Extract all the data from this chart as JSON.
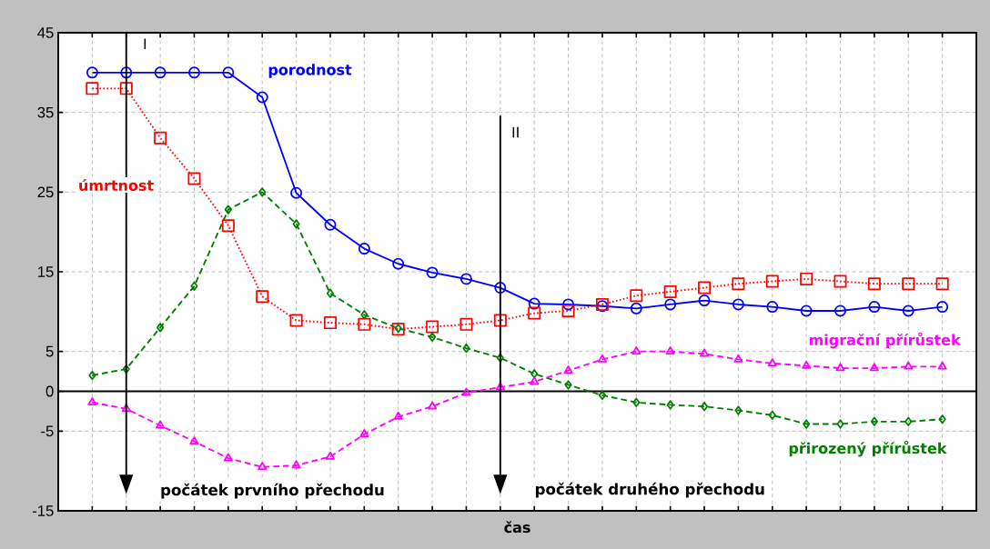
{
  "chart_data": {
    "type": "line",
    "xlabel": "čas",
    "categories": [
      null,
      null,
      null,
      null,
      null,
      null,
      null,
      null,
      null,
      null,
      null,
      null,
      null,
      null,
      null,
      null,
      null,
      null,
      null,
      null,
      null,
      null,
      null,
      null,
      null,
      null
    ],
    "ylim": [
      -15,
      45
    ],
    "yticks": [
      -15,
      -5,
      0,
      5,
      15,
      25,
      35,
      45
    ],
    "grid": true,
    "series": [
      {
        "name": "porodnost",
        "color": "#0000ff",
        "marker": "circle",
        "line_style": "solid",
        "values": [
          40,
          40,
          40,
          40,
          40,
          36.9,
          24.9,
          20.9,
          17.9,
          16.0,
          14.9,
          14.1,
          13.0,
          11.0,
          10.9,
          10.7,
          10.4,
          10.9,
          11.4,
          10.9,
          10.6,
          10.1,
          10.1,
          10.6,
          10.1,
          10.6
        ]
      },
      {
        "name": "úmrtnost",
        "color": "#ff0000",
        "marker": "square",
        "line_style": "dotted",
        "values": [
          38,
          38,
          31.8,
          26.7,
          20.8,
          11.9,
          8.9,
          8.6,
          8.4,
          7.8,
          8.1,
          8.4,
          8.9,
          9.8,
          10.1,
          10.9,
          12.0,
          12.5,
          13.0,
          13.5,
          13.8,
          14.1,
          13.8,
          13.5,
          13.5,
          13.5
        ]
      },
      {
        "name": "přirozený přírůstek",
        "color": "#008000",
        "marker": "diamond",
        "line_style": "dashed",
        "values": [
          2.0,
          2.8,
          8.0,
          13.2,
          22.8,
          25.0,
          21.0,
          12.3,
          9.6,
          7.9,
          6.8,
          5.4,
          4.2,
          2.2,
          0.8,
          -0.5,
          -1.4,
          -1.7,
          -1.9,
          -2.4,
          -3.0,
          -4.1,
          -4.1,
          -3.8,
          -3.8,
          -3.5
        ]
      },
      {
        "name": "migrační přírůstek",
        "color": "#ff00ff",
        "marker": "triangle",
        "line_style": "dashed",
        "values": [
          -1.4,
          -2.2,
          -4.3,
          -6.3,
          -8.4,
          -9.5,
          -9.3,
          -8.2,
          -5.4,
          -3.2,
          -1.9,
          -0.2,
          0.5,
          1.2,
          2.6,
          4.0,
          5.0,
          5.0,
          4.7,
          4.0,
          3.5,
          3.2,
          2.9,
          2.9,
          3.1,
          3.1
        ]
      }
    ],
    "annotations": [
      "I",
      "II",
      "počátek prvního přechodu",
      "počátek druhého přechodu"
    ]
  }
}
